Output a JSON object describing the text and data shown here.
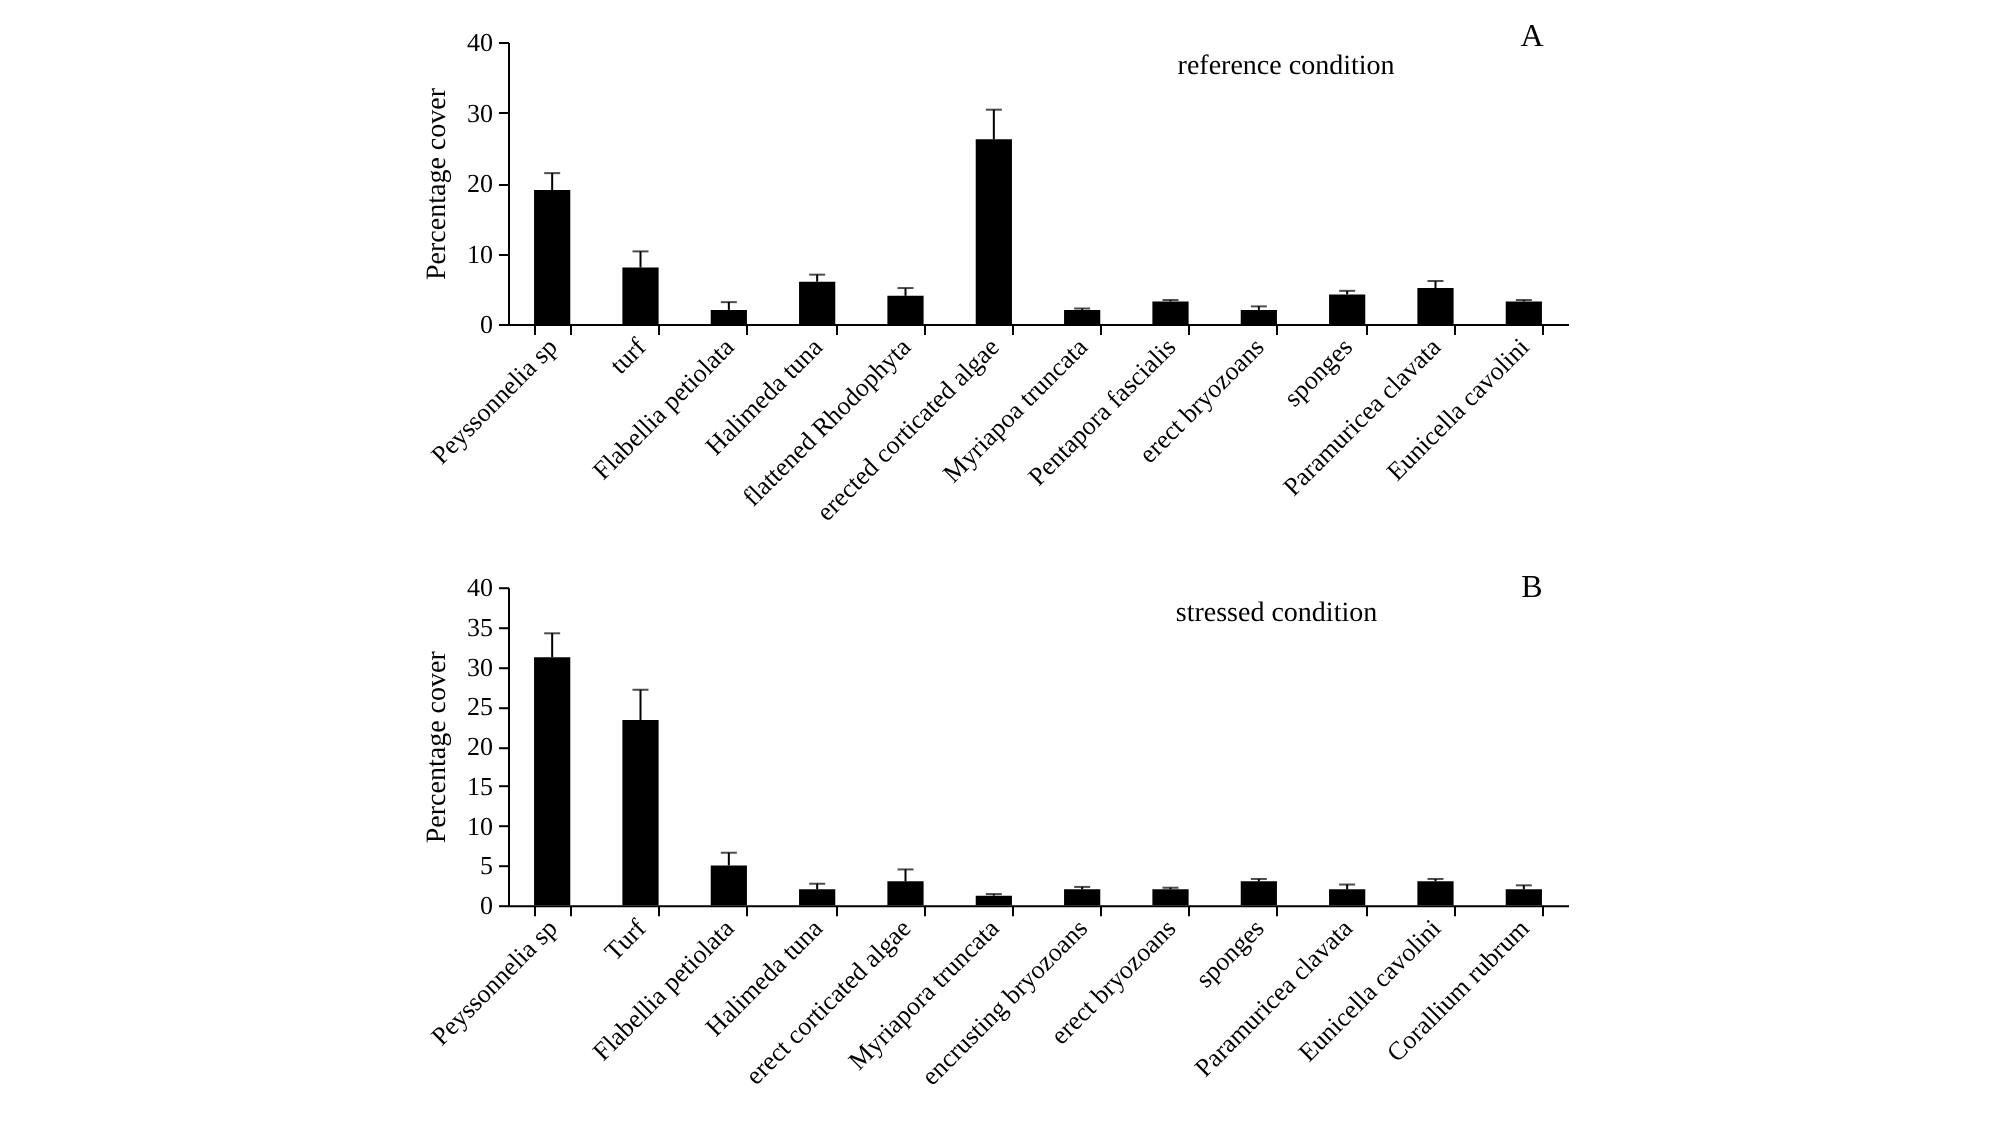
{
  "chart_data": [
    {
      "type": "bar",
      "ylabel": "Percentage cover",
      "annotations": [
        "reference condition",
        "A"
      ],
      "categories": [
        "Peyssonnelia sp",
        "turf",
        "Flabellia petiolata",
        "Halimeda tuna",
        "flattened Rhodophyta",
        "erected corticated algae",
        "Myriapoa truncata",
        "Pentapora fascialis",
        "erect bryozoans",
        "sponges",
        "Paramuricea clavata",
        "Eunicella cavolini"
      ],
      "values": [
        19,
        8,
        2,
        6,
        4,
        26.2,
        2,
        3.2,
        2,
        4.2,
        5.1,
        3.2
      ],
      "errors": [
        [
          19,
          21.4
        ],
        [
          8,
          10.3
        ],
        [
          2,
          3.1
        ],
        [
          6,
          7
        ],
        [
          4,
          5.1
        ],
        [
          26.2,
          30.4
        ],
        [
          2,
          2.2
        ],
        [
          3.2,
          3.4
        ],
        [
          2,
          2.5
        ],
        [
          4.2,
          4.7
        ],
        [
          5.1,
          6.1
        ],
        [
          3.2,
          3.4
        ]
      ],
      "color": "#000000",
      "ylim": [
        0,
        40
      ],
      "yticks": [
        0,
        10,
        20,
        30,
        40
      ]
    },
    {
      "type": "bar",
      "ylabel": "Percentage cover",
      "annotations": [
        "stressed condition",
        "B"
      ],
      "categories": [
        "Peyssonnelia sp",
        "Turf",
        "Flabellia petiolata",
        "Halimeda tuna",
        "erect corticated algae",
        "Myriapora truncata",
        "encrusting bryozoans",
        "erect bryozoans",
        "sponges",
        "Paramuricea clavata",
        "Eunicella cavolini",
        "Corallium rubrum"
      ],
      "values": [
        31.2,
        23.3,
        5,
        2,
        3,
        1.2,
        2,
        2,
        3,
        2,
        3,
        2
      ],
      "errors": [
        [
          31.2,
          34.2
        ],
        [
          23.3,
          27.1
        ],
        [
          5,
          6.6
        ],
        [
          2,
          2.7
        ],
        [
          3,
          4.5
        ],
        [
          1.2,
          1.4
        ],
        [
          2,
          2.3
        ],
        [
          2,
          2.2
        ],
        [
          3,
          3.3
        ],
        [
          2,
          2.6
        ],
        [
          3,
          3.3
        ],
        [
          2,
          2.5
        ]
      ],
      "color": "#000000",
      "ylim": [
        0,
        40
      ],
      "yticks": [
        0,
        5,
        10,
        15,
        20,
        25,
        30,
        35,
        40
      ]
    }
  ]
}
